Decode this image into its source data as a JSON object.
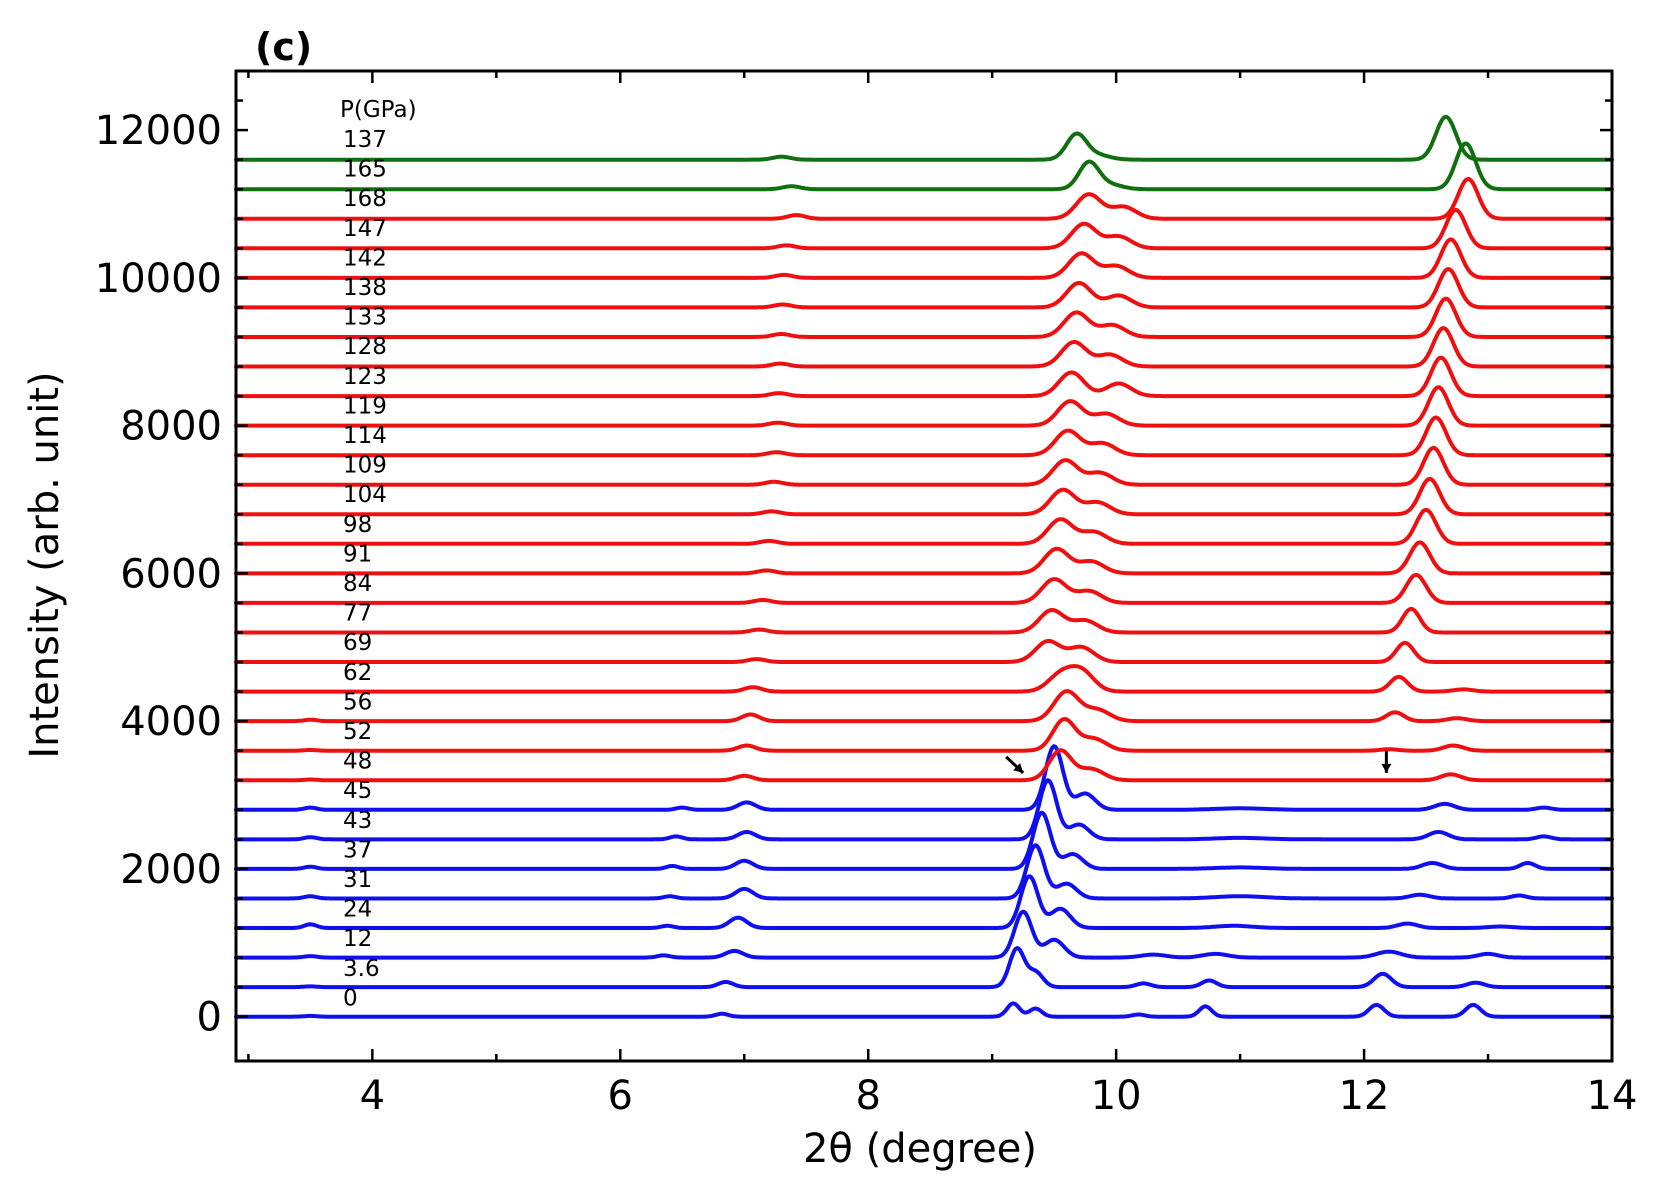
{
  "chart_data": {
    "type": "line",
    "panel_label": "(c)",
    "xlabel": "2θ (degree)",
    "ylabel": "Intensity (arb. unit)",
    "xlim": [
      2.9,
      14.0
    ],
    "ylim": [
      -600,
      12800
    ],
    "x_ticks": [
      4,
      6,
      8,
      10,
      12,
      14
    ],
    "x_tick_labels": [
      "4",
      "6",
      "8",
      "10",
      "12",
      "14"
    ],
    "y_ticks": [
      0,
      2000,
      4000,
      6000,
      8000,
      10000,
      12000
    ],
    "y_tick_labels": [
      "0",
      "2000",
      "4000",
      "6000",
      "8000",
      "10000",
      "12000"
    ],
    "legend_title": "P(GPa)",
    "colors": {
      "blue": "#1010ee",
      "red": "#ee1010",
      "green": "#107010"
    },
    "offset_step": 400,
    "arrows": [
      {
        "x": 9.25,
        "y": 3300,
        "direction": "down-right"
      },
      {
        "x": 12.18,
        "y": 3300,
        "direction": "down"
      }
    ],
    "series": [
      {
        "name": "0",
        "phase": "blue",
        "offset": 0,
        "peaks": [
          [
            3.5,
            10,
            0.05
          ],
          [
            6.82,
            40,
            0.05
          ],
          [
            9.17,
            180,
            0.05
          ],
          [
            9.35,
            110,
            0.05
          ],
          [
            10.18,
            30,
            0.05
          ],
          [
            10.72,
            140,
            0.05
          ],
          [
            12.1,
            160,
            0.06
          ],
          [
            12.88,
            160,
            0.06
          ]
        ]
      },
      {
        "name": "3.6",
        "phase": "blue",
        "offset": 400,
        "peaks": [
          [
            3.5,
            10,
            0.05
          ],
          [
            6.85,
            70,
            0.06
          ],
          [
            9.2,
            520,
            0.06
          ],
          [
            9.35,
            200,
            0.06
          ],
          [
            10.22,
            50,
            0.06
          ],
          [
            10.75,
            90,
            0.06
          ],
          [
            12.15,
            180,
            0.07
          ],
          [
            12.9,
            60,
            0.07
          ]
        ]
      },
      {
        "name": "12",
        "phase": "blue",
        "offset": 800,
        "peaks": [
          [
            3.5,
            20,
            0.05
          ],
          [
            6.35,
            30,
            0.05
          ],
          [
            6.92,
            90,
            0.07
          ],
          [
            9.25,
            620,
            0.07
          ],
          [
            9.5,
            240,
            0.08
          ],
          [
            10.3,
            40,
            0.1
          ],
          [
            10.8,
            50,
            0.1
          ],
          [
            12.2,
            80,
            0.1
          ],
          [
            13.0,
            50,
            0.08
          ]
        ]
      },
      {
        "name": "24",
        "phase": "blue",
        "offset": 1200,
        "peaks": [
          [
            3.5,
            50,
            0.05
          ],
          [
            6.38,
            30,
            0.05
          ],
          [
            6.95,
            140,
            0.07
          ],
          [
            9.3,
            700,
            0.07
          ],
          [
            9.55,
            260,
            0.08
          ],
          [
            10.95,
            30,
            0.15
          ],
          [
            12.35,
            60,
            0.08
          ],
          [
            13.1,
            20,
            0.1
          ]
        ]
      },
      {
        "name": "31",
        "phase": "blue",
        "offset": 1600,
        "peaks": [
          [
            3.5,
            30,
            0.05
          ],
          [
            6.4,
            30,
            0.05
          ],
          [
            7.0,
            130,
            0.07
          ],
          [
            9.35,
            720,
            0.07
          ],
          [
            9.6,
            200,
            0.08
          ],
          [
            11.0,
            30,
            0.2
          ],
          [
            12.45,
            50,
            0.08
          ],
          [
            13.25,
            40,
            0.06
          ]
        ]
      },
      {
        "name": "37",
        "phase": "blue",
        "offset": 2000,
        "peaks": [
          [
            3.5,
            30,
            0.05
          ],
          [
            6.42,
            40,
            0.05
          ],
          [
            7.0,
            110,
            0.07
          ],
          [
            9.4,
            760,
            0.07
          ],
          [
            9.65,
            200,
            0.08
          ],
          [
            11.0,
            20,
            0.2
          ],
          [
            12.55,
            80,
            0.08
          ],
          [
            13.32,
            80,
            0.06
          ]
        ]
      },
      {
        "name": "43",
        "phase": "blue",
        "offset": 2400,
        "peaks": [
          [
            3.5,
            30,
            0.05
          ],
          [
            6.45,
            40,
            0.05
          ],
          [
            7.02,
            100,
            0.07
          ],
          [
            9.45,
            800,
            0.07
          ],
          [
            9.7,
            200,
            0.08
          ],
          [
            11.0,
            20,
            0.2
          ],
          [
            12.6,
            100,
            0.08
          ],
          [
            13.45,
            40,
            0.06
          ]
        ]
      },
      {
        "name": "45",
        "phase": "blue",
        "offset": 2800,
        "peaks": [
          [
            3.5,
            30,
            0.05
          ],
          [
            6.5,
            30,
            0.05
          ],
          [
            7.02,
            100,
            0.07
          ],
          [
            9.5,
            860,
            0.07
          ],
          [
            9.75,
            220,
            0.08
          ],
          [
            11.0,
            20,
            0.2
          ],
          [
            12.65,
            80,
            0.08
          ],
          [
            13.45,
            30,
            0.06
          ]
        ]
      },
      {
        "name": "48",
        "phase": "red",
        "offset": 3200,
        "peaks": [
          [
            3.5,
            10,
            0.05
          ],
          [
            7.0,
            60,
            0.07
          ],
          [
            9.55,
            400,
            0.09
          ],
          [
            9.8,
            150,
            0.1
          ],
          [
            12.7,
            80,
            0.08
          ]
        ]
      },
      {
        "name": "52",
        "phase": "red",
        "offset": 3600,
        "peaks": [
          [
            3.5,
            10,
            0.05
          ],
          [
            7.02,
            70,
            0.07
          ],
          [
            9.58,
            420,
            0.09
          ],
          [
            9.82,
            160,
            0.1
          ],
          [
            12.2,
            20,
            0.07
          ],
          [
            12.72,
            70,
            0.08
          ]
        ]
      },
      {
        "name": "56",
        "phase": "red",
        "offset": 4000,
        "peaks": [
          [
            3.5,
            20,
            0.05
          ],
          [
            7.05,
            90,
            0.07
          ],
          [
            9.6,
            400,
            0.1
          ],
          [
            9.85,
            150,
            0.1
          ],
          [
            12.25,
            120,
            0.07
          ],
          [
            12.75,
            40,
            0.08
          ]
        ]
      },
      {
        "name": "62",
        "phase": "red",
        "offset": 4400,
        "peaks": [
          [
            7.07,
            60,
            0.07
          ],
          [
            9.55,
            220,
            0.1
          ],
          [
            9.72,
            270,
            0.1
          ],
          [
            12.28,
            200,
            0.07
          ],
          [
            12.8,
            30,
            0.08
          ]
        ]
      },
      {
        "name": "69",
        "phase": "red",
        "offset": 4800,
        "peaks": [
          [
            7.1,
            40,
            0.07
          ],
          [
            9.45,
            280,
            0.1
          ],
          [
            9.72,
            200,
            0.1
          ],
          [
            12.33,
            260,
            0.07
          ]
        ]
      },
      {
        "name": "77",
        "phase": "red",
        "offset": 5200,
        "peaks": [
          [
            7.12,
            40,
            0.07
          ],
          [
            9.48,
            300,
            0.1
          ],
          [
            9.75,
            160,
            0.1
          ],
          [
            12.38,
            320,
            0.07
          ]
        ]
      },
      {
        "name": "84",
        "phase": "red",
        "offset": 5600,
        "peaks": [
          [
            7.15,
            40,
            0.07
          ],
          [
            9.5,
            320,
            0.1
          ],
          [
            9.78,
            160,
            0.1
          ],
          [
            12.42,
            380,
            0.08
          ]
        ]
      },
      {
        "name": "91",
        "phase": "red",
        "offset": 6000,
        "peaks": [
          [
            7.18,
            40,
            0.07
          ],
          [
            9.52,
            330,
            0.1
          ],
          [
            9.8,
            160,
            0.1
          ],
          [
            12.45,
            420,
            0.08
          ]
        ]
      },
      {
        "name": "98",
        "phase": "red",
        "offset": 6400,
        "peaks": [
          [
            7.2,
            40,
            0.07
          ],
          [
            9.55,
            330,
            0.1
          ],
          [
            9.82,
            160,
            0.1
          ],
          [
            12.5,
            460,
            0.08
          ]
        ]
      },
      {
        "name": "104",
        "phase": "red",
        "offset": 6800,
        "peaks": [
          [
            7.22,
            40,
            0.07
          ],
          [
            9.57,
            330,
            0.1
          ],
          [
            9.85,
            160,
            0.1
          ],
          [
            12.53,
            480,
            0.08
          ]
        ]
      },
      {
        "name": "109",
        "phase": "red",
        "offset": 7200,
        "peaks": [
          [
            7.24,
            40,
            0.07
          ],
          [
            9.59,
            330,
            0.1
          ],
          [
            9.87,
            160,
            0.1
          ],
          [
            12.56,
            500,
            0.08
          ]
        ]
      },
      {
        "name": "114",
        "phase": "red",
        "offset": 7600,
        "peaks": [
          [
            7.26,
            40,
            0.07
          ],
          [
            9.61,
            330,
            0.1
          ],
          [
            9.89,
            160,
            0.1
          ],
          [
            12.58,
            510,
            0.08
          ]
        ]
      },
      {
        "name": "119",
        "phase": "red",
        "offset": 8000,
        "peaks": [
          [
            7.27,
            40,
            0.07
          ],
          [
            9.63,
            330,
            0.1
          ],
          [
            9.92,
            160,
            0.1
          ],
          [
            12.6,
            520,
            0.08
          ]
        ]
      },
      {
        "name": "123",
        "phase": "red",
        "offset": 8400,
        "peaks": [
          [
            7.28,
            40,
            0.07
          ],
          [
            9.64,
            320,
            0.1
          ],
          [
            10.02,
            170,
            0.1
          ],
          [
            12.62,
            520,
            0.08
          ]
        ]
      },
      {
        "name": "128",
        "phase": "red",
        "offset": 8800,
        "peaks": [
          [
            7.29,
            40,
            0.07
          ],
          [
            9.66,
            330,
            0.1
          ],
          [
            9.95,
            160,
            0.1
          ],
          [
            12.64,
            520,
            0.08
          ]
        ]
      },
      {
        "name": "133",
        "phase": "red",
        "offset": 9200,
        "peaks": [
          [
            7.3,
            40,
            0.07
          ],
          [
            9.68,
            330,
            0.1
          ],
          [
            9.97,
            160,
            0.1
          ],
          [
            12.66,
            520,
            0.08
          ]
        ]
      },
      {
        "name": "138",
        "phase": "red",
        "offset": 9600,
        "peaks": [
          [
            7.31,
            40,
            0.07
          ],
          [
            9.7,
            330,
            0.1
          ],
          [
            10.02,
            160,
            0.1
          ],
          [
            12.68,
            520,
            0.08
          ]
        ]
      },
      {
        "name": "142",
        "phase": "red",
        "offset": 10000,
        "peaks": [
          [
            7.32,
            40,
            0.07
          ],
          [
            9.72,
            330,
            0.1
          ],
          [
            10.0,
            160,
            0.1
          ],
          [
            12.7,
            520,
            0.08
          ]
        ]
      },
      {
        "name": "147",
        "phase": "red",
        "offset": 10400,
        "peaks": [
          [
            7.34,
            40,
            0.07
          ],
          [
            9.74,
            330,
            0.1
          ],
          [
            10.02,
            160,
            0.1
          ],
          [
            12.74,
            520,
            0.08
          ]
        ]
      },
      {
        "name": "168",
        "phase": "red",
        "offset": 10800,
        "peaks": [
          [
            7.42,
            50,
            0.07
          ],
          [
            9.78,
            330,
            0.1
          ],
          [
            10.06,
            160,
            0.1
          ],
          [
            12.84,
            540,
            0.08
          ]
        ]
      },
      {
        "name": "165",
        "phase": "green",
        "offset": 11200,
        "peaks": [
          [
            7.38,
            40,
            0.07
          ],
          [
            9.78,
            360,
            0.08
          ],
          [
            9.95,
            60,
            0.1
          ],
          [
            12.82,
            620,
            0.08
          ]
        ]
      },
      {
        "name": "137",
        "phase": "green",
        "offset": 11600,
        "peaks": [
          [
            7.3,
            40,
            0.07
          ],
          [
            9.68,
            340,
            0.08
          ],
          [
            9.85,
            60,
            0.1
          ],
          [
            12.66,
            580,
            0.08
          ]
        ]
      }
    ]
  }
}
